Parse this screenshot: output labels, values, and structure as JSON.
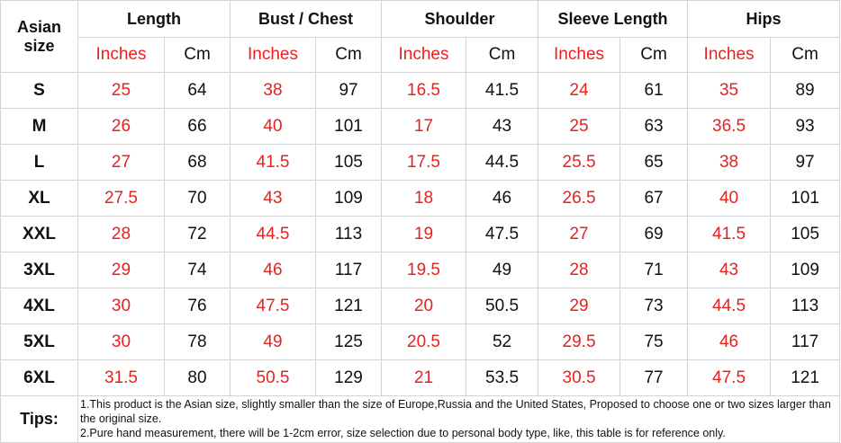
{
  "header": {
    "corner": "Asian size",
    "groups": [
      "Length",
      "Bust / Chest",
      "Shoulder",
      "Sleeve Length",
      "Hips"
    ],
    "units": [
      "Inches",
      "Cm",
      "Inches",
      "Cm",
      "Inches",
      "Cm",
      "Inches",
      "Cm",
      "Inches",
      "Cm"
    ]
  },
  "rows": [
    {
      "size": "S",
      "values": [
        25,
        64,
        38,
        97,
        16.5,
        41.5,
        24,
        61,
        35,
        89
      ]
    },
    {
      "size": "M",
      "values": [
        26,
        66,
        40,
        101,
        17,
        43,
        25,
        63,
        36.5,
        93
      ]
    },
    {
      "size": "L",
      "values": [
        27,
        68,
        41.5,
        105,
        17.5,
        44.5,
        25.5,
        65,
        38,
        97
      ]
    },
    {
      "size": "XL",
      "values": [
        27.5,
        70,
        43,
        109,
        18,
        46,
        26.5,
        67,
        40,
        101
      ]
    },
    {
      "size": "XXL",
      "values": [
        28,
        72,
        44.5,
        113,
        19,
        47.5,
        27,
        69,
        41.5,
        105
      ]
    },
    {
      "size": "3XL",
      "values": [
        29,
        74,
        46,
        117,
        19.5,
        49,
        28,
        71,
        43,
        109
      ]
    },
    {
      "size": "4XL",
      "values": [
        30,
        76,
        47.5,
        121,
        20,
        50.5,
        29,
        73,
        44.5,
        113
      ]
    },
    {
      "size": "5XL",
      "values": [
        30,
        78,
        49,
        125,
        20.5,
        52,
        29.5,
        75,
        46,
        117
      ]
    },
    {
      "size": "6XL",
      "values": [
        31.5,
        80,
        50.5,
        129,
        21,
        53.5,
        30.5,
        77,
        47.5,
        121
      ]
    }
  ],
  "tips": {
    "label": "Tips:",
    "lines": [
      "1.This product is the Asian size, slightly smaller than the size of Europe,Russia and the United States, Proposed to choose one or two sizes larger than the original size.",
      "2.Pure hand measurement, there will be 1-2cm error, size selection due to personal body type, like, this table is for reference only."
    ]
  }
}
